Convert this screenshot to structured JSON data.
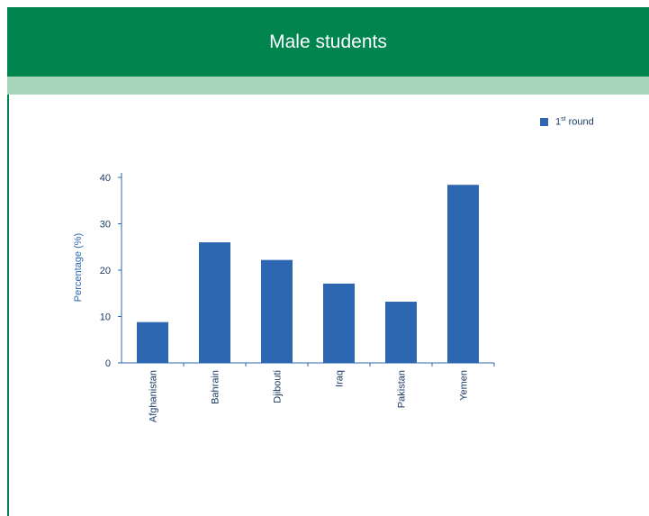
{
  "header": {
    "title": "Male students"
  },
  "colors": {
    "header": "#00854f",
    "band": "#a7d5b9",
    "bar": "#2e67b1",
    "axis": "#2e67b1"
  },
  "chart_data": {
    "type": "bar",
    "categories": [
      "Afghanistan",
      "Bahrain",
      "Djibouti",
      "Iraq",
      "Pakistan",
      "Yemen"
    ],
    "series": [
      {
        "name": "1st round",
        "name_base": "1",
        "name_sup": "st",
        "name_rest": " round",
        "values": [
          8.8,
          26.0,
          22.2,
          17.1,
          13.2,
          38.4
        ]
      }
    ],
    "ylabel": "Percentage (%)",
    "xlabel": "",
    "ylim": [
      0,
      40
    ],
    "yticks": [
      0,
      10,
      20,
      30,
      40
    ],
    "grid": false,
    "legend": "top-right"
  }
}
